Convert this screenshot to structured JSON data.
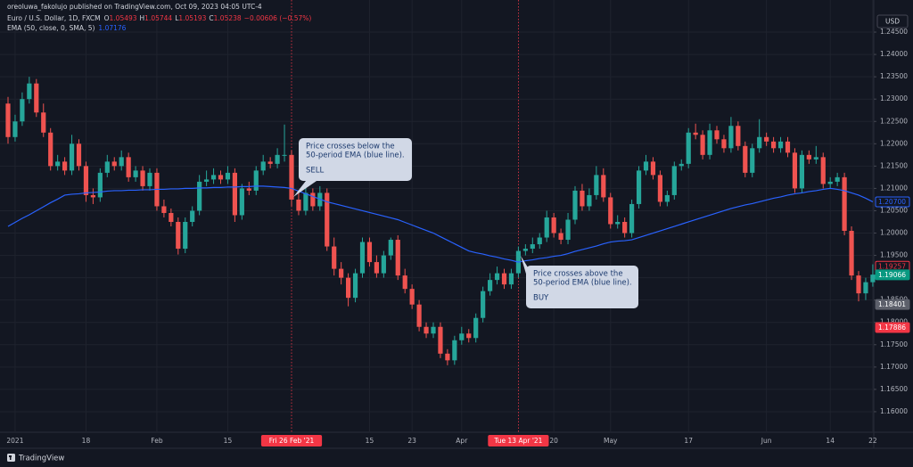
{
  "header": {
    "credit": "oreoluwa_fakolujo published on TradingView.com, Oct 09, 2023 04:05 UTC-4",
    "currency": "USD"
  },
  "footer": {
    "brand": "TradingView"
  },
  "chart_data": {
    "type": "candlestick",
    "legend": {
      "ohlc": [
        {
          "key": "O",
          "value": "1.05493"
        },
        {
          "key": "H",
          "value": "1.05744"
        },
        {
          "key": "L",
          "value": "1.05193"
        },
        {
          "key": "C",
          "value": "1.05238"
        }
      ],
      "change": "−0.00606 (−0.57%)",
      "ema_value": "1.07176"
    },
    "categories": [
      null,
      "2021",
      null,
      null,
      null,
      null,
      null,
      null,
      null,
      null,
      null,
      "18",
      null,
      null,
      null,
      null,
      null,
      null,
      null,
      null,
      null,
      "Feb",
      null,
      null,
      null,
      null,
      null,
      null,
      null,
      null,
      null,
      "15",
      null,
      null,
      null,
      null,
      null,
      null,
      null,
      null,
      "Fri 26 Feb '21",
      null,
      null,
      null,
      null,
      null,
      null,
      null,
      null,
      null,
      null,
      "15",
      null,
      null,
      null,
      null,
      null,
      "23",
      null,
      null,
      null,
      null,
      null,
      null,
      "Apr",
      null,
      null,
      null,
      null,
      null,
      null,
      null,
      "Tue 13 Apr '21",
      null,
      null,
      null,
      null,
      "20",
      null,
      null,
      null,
      null,
      null,
      null,
      null,
      "May",
      null,
      null,
      null,
      null,
      null,
      null,
      null,
      null,
      null,
      null,
      "17",
      null,
      null,
      null,
      null,
      null,
      null,
      null,
      null,
      null,
      null,
      "Jun",
      null,
      null,
      null,
      null,
      null,
      null,
      null,
      null,
      "14",
      null,
      null,
      null,
      null,
      null,
      "22"
    ],
    "vlines": [
      40,
      72
    ],
    "vline_color": "#f23645",
    "series": [
      {
        "name": "Euro / U.S. Dollar, 1D, FXCM",
        "up_color": "#26a69a",
        "down_color": "#ef5350",
        "open": [
          1.229,
          1.2215,
          1.225,
          1.23,
          1.2335,
          1.227,
          1.2225,
          1.215,
          1.216,
          1.214,
          1.22,
          1.215,
          1.2085,
          1.208,
          1.2135,
          1.216,
          1.215,
          1.217,
          1.2125,
          1.214,
          1.2105,
          1.2135,
          1.206,
          1.2045,
          1.2025,
          1.1965,
          1.2025,
          1.205,
          1.2115,
          1.212,
          1.213,
          1.212,
          1.2135,
          1.204,
          1.21,
          1.2095,
          1.214,
          1.216,
          1.2155,
          1.2175,
          1.2175,
          1.2075,
          1.205,
          1.209,
          1.206,
          1.209,
          1.197,
          1.192,
          1.19,
          1.1855,
          1.191,
          1.198,
          1.1935,
          1.191,
          1.195,
          1.1985,
          1.1905,
          1.1875,
          1.184,
          1.179,
          1.1775,
          1.179,
          1.173,
          1.1715,
          1.176,
          1.1775,
          1.1765,
          1.181,
          1.187,
          1.1895,
          1.191,
          1.1885,
          1.191,
          1.196,
          1.1965,
          1.1975,
          1.199,
          1.2035,
          1.2,
          1.1985,
          1.203,
          1.2095,
          1.206,
          1.2085,
          1.213,
          1.208,
          1.202,
          1.2025,
          1.2,
          1.2065,
          1.214,
          1.216,
          1.213,
          1.207,
          1.2085,
          1.215,
          1.2155,
          1.2225,
          1.222,
          1.2175,
          1.223,
          1.221,
          1.219,
          1.224,
          1.2195,
          1.2135,
          1.219,
          1.2215,
          1.2205,
          1.219,
          1.2205,
          1.218,
          1.21,
          1.2175,
          1.2165,
          1.217,
          1.211,
          1.2115,
          1.2125,
          1.2005,
          1.1905,
          1.1865,
          1.189
        ],
        "high": [
          1.2305,
          1.2265,
          1.2315,
          1.235,
          1.2345,
          1.229,
          1.2235,
          1.2175,
          1.217,
          1.222,
          1.221,
          1.216,
          1.21,
          1.2145,
          1.2175,
          1.217,
          1.2185,
          1.218,
          1.215,
          1.215,
          1.2145,
          1.2145,
          1.2075,
          1.2055,
          1.2035,
          1.2035,
          1.206,
          1.213,
          1.214,
          1.2145,
          1.214,
          1.215,
          1.2145,
          1.211,
          1.2115,
          1.215,
          1.2175,
          1.217,
          1.219,
          1.2243,
          1.2185,
          1.209,
          1.211,
          1.21,
          1.2105,
          1.21,
          1.199,
          1.1935,
          1.191,
          1.192,
          1.199,
          1.199,
          1.195,
          1.196,
          1.199,
          1.1995,
          1.192,
          1.1885,
          1.185,
          1.18,
          1.18,
          1.18,
          1.174,
          1.177,
          1.179,
          1.1785,
          1.182,
          1.188,
          1.191,
          1.1925,
          1.192,
          1.192,
          1.197,
          1.1975,
          1.199,
          1.2,
          1.205,
          1.2045,
          1.201,
          1.2045,
          1.2105,
          1.211,
          1.21,
          1.215,
          1.2145,
          1.209,
          1.204,
          1.2035,
          1.2075,
          1.215,
          1.2175,
          1.217,
          1.214,
          1.2095,
          1.216,
          1.2165,
          1.2235,
          1.2245,
          1.223,
          1.2245,
          1.224,
          1.222,
          1.226,
          1.225,
          1.2205,
          1.22,
          1.2255,
          1.2225,
          1.2215,
          1.2215,
          1.2215,
          1.219,
          1.2185,
          1.2185,
          1.2195,
          1.218,
          1.2125,
          1.2135,
          1.2135,
          1.2015,
          1.1915,
          1.19,
          1.193
        ],
        "low": [
          1.22,
          1.2205,
          1.224,
          1.229,
          1.226,
          1.2215,
          1.214,
          1.214,
          1.213,
          1.213,
          1.214,
          1.207,
          1.2065,
          1.207,
          1.2125,
          1.214,
          1.214,
          1.2115,
          1.2115,
          1.2095,
          1.2095,
          1.205,
          1.2035,
          1.2015,
          1.1952,
          1.1955,
          1.2015,
          1.204,
          1.2105,
          1.211,
          1.211,
          1.211,
          1.2025,
          1.203,
          1.2085,
          1.2085,
          1.213,
          1.2145,
          1.2145,
          1.216,
          1.206,
          1.204,
          1.204,
          1.205,
          1.205,
          1.196,
          1.1905,
          1.1885,
          1.1836,
          1.1845,
          1.19,
          1.1925,
          1.19,
          1.19,
          1.194,
          1.1895,
          1.1865,
          1.183,
          1.178,
          1.1765,
          1.1765,
          1.172,
          1.1704,
          1.1705,
          1.175,
          1.1755,
          1.1755,
          1.18,
          1.186,
          1.1885,
          1.1875,
          1.1875,
          1.19,
          1.195,
          1.1955,
          1.1965,
          1.198,
          1.199,
          1.1975,
          1.1975,
          1.202,
          1.205,
          1.205,
          1.2075,
          1.207,
          1.201,
          1.201,
          1.199,
          1.199,
          1.2055,
          1.213,
          1.212,
          1.206,
          1.206,
          1.2075,
          1.214,
          1.2145,
          1.221,
          1.2165,
          1.2165,
          1.22,
          1.218,
          1.218,
          1.2185,
          1.2125,
          1.2125,
          1.218,
          1.2195,
          1.218,
          1.218,
          1.217,
          1.209,
          1.209,
          1.2155,
          1.2155,
          1.21,
          1.21,
          1.2105,
          1.1995,
          1.1895,
          1.1847,
          1.185,
          1.188
        ],
        "close": [
          1.2215,
          1.225,
          1.23,
          1.2335,
          1.227,
          1.2225,
          1.215,
          1.216,
          1.214,
          1.22,
          1.215,
          1.2085,
          1.208,
          1.2135,
          1.216,
          1.215,
          1.217,
          1.2125,
          1.214,
          1.2105,
          1.2135,
          1.206,
          1.2045,
          1.2025,
          1.1965,
          1.2025,
          1.205,
          1.2115,
          1.212,
          1.213,
          1.212,
          1.2135,
          1.204,
          1.21,
          1.2095,
          1.214,
          1.216,
          1.2155,
          1.2175,
          1.2175,
          1.2075,
          1.205,
          1.209,
          1.206,
          1.209,
          1.197,
          1.192,
          1.19,
          1.1855,
          1.191,
          1.198,
          1.1935,
          1.191,
          1.195,
          1.1985,
          1.1905,
          1.1875,
          1.184,
          1.179,
          1.1775,
          1.179,
          1.173,
          1.1715,
          1.176,
          1.1775,
          1.1765,
          1.181,
          1.187,
          1.1895,
          1.191,
          1.1885,
          1.191,
          1.196,
          1.1965,
          1.1975,
          1.199,
          1.2035,
          1.2,
          1.1985,
          1.203,
          1.2095,
          1.206,
          1.2085,
          1.213,
          1.208,
          1.202,
          1.2025,
          1.2,
          1.2065,
          1.214,
          1.216,
          1.213,
          1.207,
          1.2085,
          1.215,
          1.2155,
          1.2225,
          1.222,
          1.2175,
          1.223,
          1.221,
          1.219,
          1.224,
          1.2195,
          1.2135,
          1.219,
          1.2215,
          1.2205,
          1.219,
          1.2205,
          1.218,
          1.21,
          1.2175,
          1.2165,
          1.217,
          1.211,
          1.2115,
          1.2125,
          1.2005,
          1.1905,
          1.1865,
          1.189,
          1.1907
        ]
      },
      {
        "name": "EMA (50, close, 0, SMA, 5)",
        "color": "#2962ff",
        "values": [
          1.2015,
          1.2024,
          1.2033,
          1.2041,
          1.205,
          1.2059,
          1.2068,
          1.2076,
          1.2085,
          1.2087,
          1.2088,
          1.209,
          1.2091,
          1.2092,
          1.2094,
          1.2095,
          1.2095,
          1.2096,
          1.2096,
          1.2097,
          1.2097,
          1.2098,
          1.2098,
          1.2099,
          1.2099,
          1.21,
          1.21,
          1.2101,
          1.2101,
          1.2102,
          1.2102,
          1.2103,
          1.2103,
          1.2104,
          1.2104,
          1.2105,
          1.2105,
          1.2104,
          1.2103,
          1.2102,
          1.21,
          1.2094,
          1.2088,
          1.2082,
          1.2076,
          1.207,
          1.2066,
          1.2062,
          1.2058,
          1.2054,
          1.205,
          1.2046,
          1.2042,
          1.2038,
          1.2034,
          1.203,
          1.2024,
          1.2018,
          1.2012,
          1.2006,
          1.2,
          1.1992,
          1.1984,
          1.1976,
          1.1968,
          1.196,
          1.1956,
          1.1953,
          1.1949,
          1.1946,
          1.1942,
          1.1939,
          1.1935,
          1.1938,
          1.194,
          1.1943,
          1.1945,
          1.1948,
          1.195,
          1.1954,
          1.1959,
          1.1963,
          1.1967,
          1.1971,
          1.1976,
          1.198,
          1.1982,
          1.1983,
          1.1985,
          1.199,
          1.1995,
          1.2,
          1.2005,
          1.201,
          1.2015,
          1.202,
          1.2025,
          1.203,
          1.2035,
          1.204,
          1.2045,
          1.205,
          1.2055,
          1.2059,
          1.2063,
          1.2066,
          1.207,
          1.2074,
          1.2078,
          1.2081,
          1.2085,
          1.2088,
          1.209,
          1.2093,
          1.2095,
          1.2098,
          1.21,
          1.2098,
          1.2095,
          1.209,
          1.2085,
          1.2078,
          1.207
        ]
      }
    ],
    "ylim": [
      1.1554,
      1.2486
    ],
    "yticks": [
      {
        "value": 1.245,
        "label": "1.24500"
      },
      {
        "value": 1.24,
        "label": "1.24000"
      },
      {
        "value": 1.235,
        "label": "1.23500"
      },
      {
        "value": 1.23,
        "label": "1.23000"
      },
      {
        "value": 1.225,
        "label": "1.22500"
      },
      {
        "value": 1.22,
        "label": "1.22000"
      },
      {
        "value": 1.215,
        "label": "1.21500"
      },
      {
        "value": 1.21,
        "label": "1.21000"
      },
      {
        "value": 1.205,
        "label": "1.20500"
      },
      {
        "value": 1.2,
        "label": "1.20000"
      },
      {
        "value": 1.195,
        "label": "1.19500"
      },
      {
        "value": 1.19,
        "label": "1.19000"
      },
      {
        "value": 1.185,
        "label": "1.18500"
      },
      {
        "value": 1.18,
        "label": "1.18000"
      },
      {
        "value": 1.175,
        "label": "1.17500"
      },
      {
        "value": 1.17,
        "label": "1.17000"
      },
      {
        "value": 1.165,
        "label": "1.16500"
      },
      {
        "value": 1.16,
        "label": "1.16000"
      }
    ],
    "price_tags": [
      {
        "value": 1.207,
        "label": "1.20700",
        "color": "#2962ff",
        "style": "outline"
      },
      {
        "value": 1.19257,
        "label": "1.19257",
        "color": "#f23645",
        "style": "outline"
      },
      {
        "value": 1.19066,
        "label": "1.19066",
        "color": "#089981",
        "style": "solid"
      },
      {
        "value": 1.18401,
        "label": "1.18401",
        "color": "#5d606b",
        "style": "solid"
      },
      {
        "value": 1.17886,
        "label": "1.17886",
        "color": "#f23645",
        "style": "solid"
      }
    ],
    "grid": true,
    "annotations": [
      {
        "lines": [
          "Price crosses below the",
          "50-period EMA (blue line)."
        ],
        "signal": "SELL"
      },
      {
        "lines": [
          "Price crosses above the",
          "50-period EMA (blue line)."
        ],
        "signal": "BUY"
      }
    ]
  }
}
